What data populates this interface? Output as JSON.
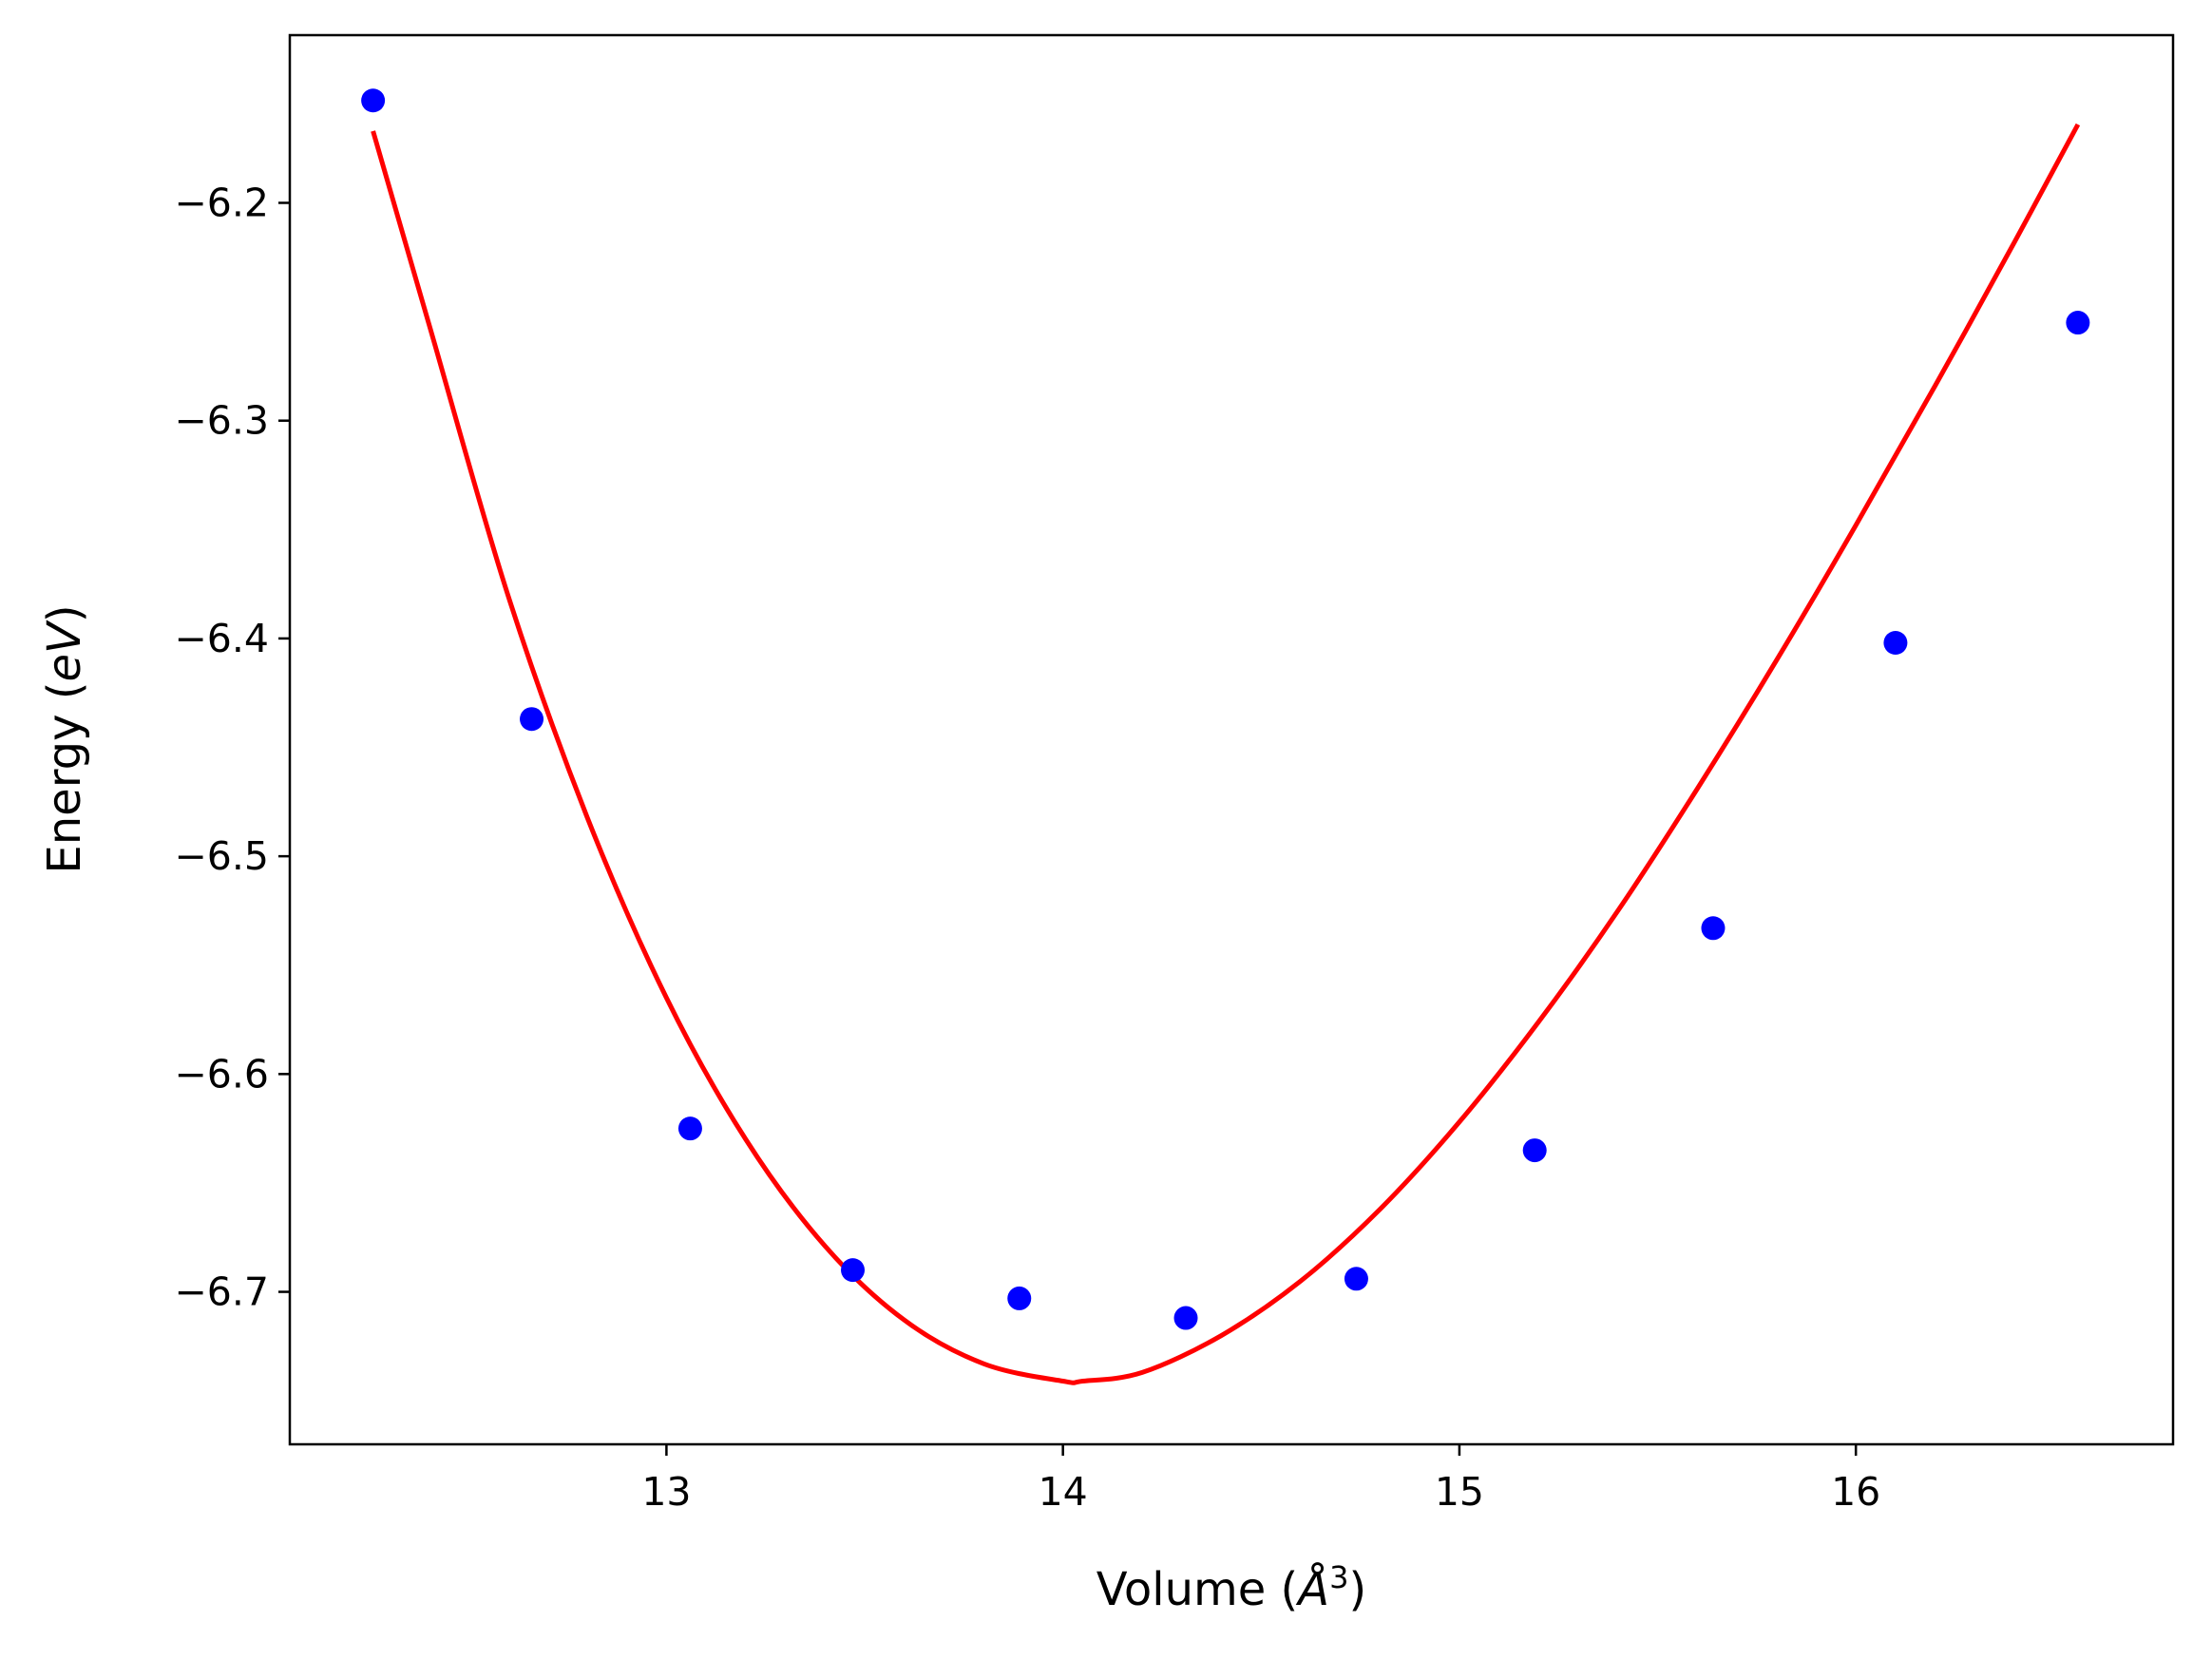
{
  "chart_data": {
    "type": "scatter",
    "xlabel_parts": {
      "main": "Volume (",
      "symbol": "Å",
      "exponent": "3",
      "end": ")"
    },
    "ylabel_parts": {
      "main": "Energy (",
      "unit": "eV",
      "end": ")"
    },
    "xlim": [
      12.05,
      16.8
    ],
    "ylim": [
      -6.77,
      -6.123
    ],
    "xticks": [
      13,
      14,
      15,
      16
    ],
    "xtick_labels": [
      "13",
      "14",
      "15",
      "16"
    ],
    "yticks": [
      -6.2,
      -6.3,
      -6.4,
      -6.5,
      -6.6,
      -6.7
    ],
    "ytick_labels": [
      "−6.2",
      "−6.3",
      "−6.4",
      "−6.5",
      "−6.6",
      "−6.7"
    ],
    "grid": false,
    "colors": {
      "points": "#0000ff",
      "fit": "#ff0000",
      "axes": "#000000"
    },
    "series": [
      {
        "kind": "points",
        "x": [
          12.26,
          12.66,
          13.06,
          13.47,
          13.89,
          14.31,
          14.74,
          15.19,
          15.64,
          16.1,
          16.56
        ],
        "y": [
          -6.153,
          -6.437,
          -6.625,
          -6.69,
          -6.703,
          -6.712,
          -6.694,
          -6.635,
          -6.533,
          -6.402,
          -6.255
        ]
      },
      {
        "kind": "fit-line",
        "x": [
          12.26,
          12.4,
          12.6,
          12.8,
          13.0,
          13.2,
          13.4,
          13.6,
          13.8,
          14.0,
          14.05,
          14.2,
          14.4,
          14.6,
          14.8,
          15.0,
          15.2,
          15.4,
          15.6,
          15.8,
          16.0,
          16.2,
          16.4,
          16.56
        ],
        "y": [
          -6.167,
          -6.255,
          -6.38,
          -6.482,
          -6.565,
          -6.63,
          -6.679,
          -6.713,
          -6.733,
          -6.741,
          -6.741,
          -6.737,
          -6.72,
          -6.695,
          -6.662,
          -6.622,
          -6.576,
          -6.525,
          -6.469,
          -6.41,
          -6.348,
          -6.284,
          -6.218,
          -6.164
        ]
      }
    ]
  }
}
